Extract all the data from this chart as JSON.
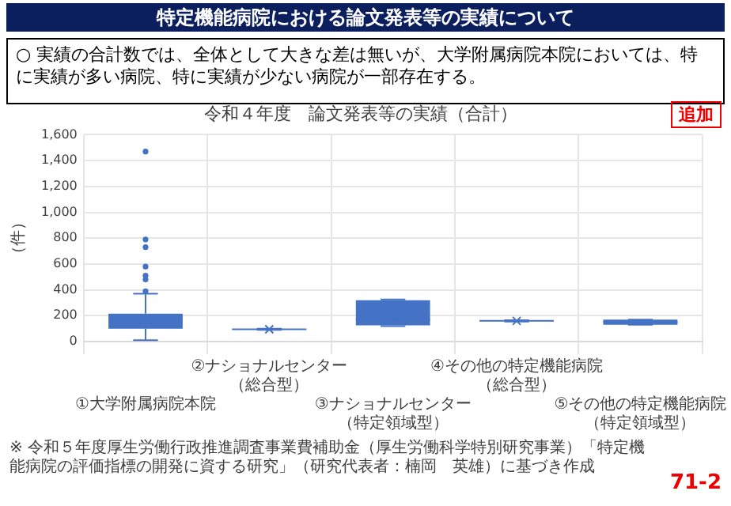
{
  "chart_data": {
    "type": "box",
    "title": "特定機能病院における論文発表等の実績について",
    "subtitle": "令和４年度　論文発表等の実績（合計）",
    "ylabel": "（件）",
    "categories": [
      "①大学附属病院本院",
      "②ナショナルセンター（総合型）",
      "③ナショナルセンター（特定領域型）",
      "④その他の特定機能病院（総合型）",
      "⑤その他の特定機能病院（特定領域型）"
    ],
    "color": "#4472c4",
    "boxes": [
      {
        "low": 10,
        "q1": 100,
        "median": 150,
        "q3": 215,
        "high": 370,
        "outliers": [
          1470,
          790,
          730,
          580,
          510,
          480,
          390
        ]
      },
      {
        "low": 90,
        "q1": 93,
        "median": 95,
        "q3": 97,
        "high": 100,
        "mean": 95
      },
      {
        "low": 120,
        "q1": 125,
        "median": 170,
        "q3": 320,
        "high": 325,
        "mean": 190
      },
      {
        "low": 155,
        "q1": 158,
        "median": 160,
        "q3": 162,
        "high": 165,
        "mean": 160
      },
      {
        "low": 130,
        "q1": 130,
        "median": 150,
        "q3": 170,
        "high": 170
      }
    ],
    "ylim": [
      0,
      1600
    ],
    "yticks": [
      0,
      200,
      400,
      600,
      800,
      {
        "value": 1000,
        "label": "1,000"
      },
      {
        "value": 1200,
        "label": "1,200"
      },
      {
        "value": 1400,
        "label": "1,400"
      },
      {
        "value": 1600,
        "label": "1,600"
      }
    ],
    "grid": true,
    "annotations": [
      "○ 実績の合計数では、全体として大きな差は無いが、大学附属病院本院においては、特に実績が多い病院、特に実績が少ない病院が一部存在する。",
      "追加",
      "※ 令和５年度厚生労働行政推進調査事業費補助金（厚生労働科学特別研究事業）「特定機能病院の評価指標の開発に資する研究」（研究代表者：楠岡　英雄）に基づき作成",
      "71-2"
    ]
  }
}
